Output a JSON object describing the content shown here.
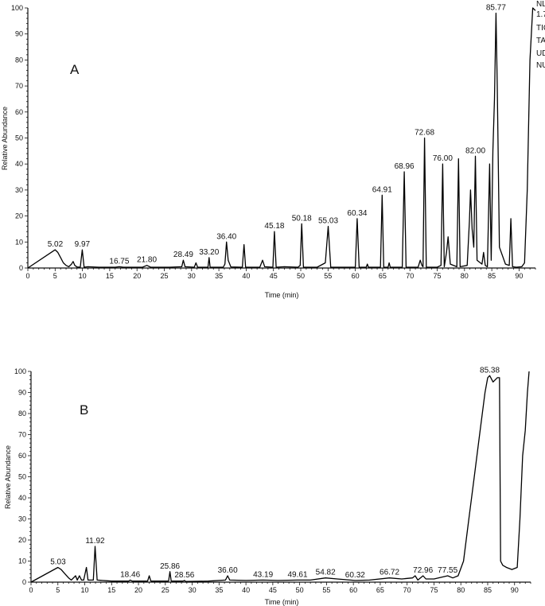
{
  "chart_data": [
    {
      "type": "line",
      "panel_label": "A",
      "xlabel": "Time (min)",
      "ylabel": "Relative Abundance",
      "xlim": [
        0,
        93
      ],
      "ylim": [
        0,
        100
      ],
      "xticks": [
        "0",
        "5",
        "10",
        "15",
        "20",
        "25",
        "30",
        "35",
        "40",
        "45",
        "50",
        "55",
        "60",
        "65",
        "70",
        "75",
        "80",
        "85",
        "90"
      ],
      "yticks": [
        "0",
        "10",
        "20",
        "30",
        "40",
        "50",
        "60",
        "70",
        "80",
        "90",
        "100"
      ],
      "side_text": [
        "NL",
        "1.7",
        "TIC",
        "TA",
        "UD",
        "NU"
      ],
      "peak_labels": [
        {
          "text": "5.02",
          "x": 5.02,
          "y": 7
        },
        {
          "text": "9.97",
          "x": 9.97,
          "y": 7
        },
        {
          "text": "16.75",
          "x": 16.75,
          "y": 0.5
        },
        {
          "text": "21.80",
          "x": 21.8,
          "y": 1
        },
        {
          "text": "28.49",
          "x": 28.49,
          "y": 3
        },
        {
          "text": "33.20",
          "x": 33.2,
          "y": 4
        },
        {
          "text": "36.40",
          "x": 36.4,
          "y": 10
        },
        {
          "text": "45.18",
          "x": 45.18,
          "y": 14
        },
        {
          "text": "50.18",
          "x": 50.18,
          "y": 17
        },
        {
          "text": "55.03",
          "x": 55.03,
          "y": 16
        },
        {
          "text": "60.34",
          "x": 60.34,
          "y": 19
        },
        {
          "text": "64.91",
          "x": 64.91,
          "y": 28
        },
        {
          "text": "68.96",
          "x": 68.96,
          "y": 37
        },
        {
          "text": "72.68",
          "x": 72.68,
          "y": 50
        },
        {
          "text": "76.00",
          "x": 76.0,
          "y": 40
        },
        {
          "text": "82.00",
          "x": 82.0,
          "y": 43
        },
        {
          "text": "85.77",
          "x": 85.77,
          "y": 98
        }
      ],
      "x": [
        0,
        5.0,
        5.5,
        6.0,
        6.5,
        7.0,
        7.5,
        8.0,
        8.3,
        8.6,
        9.0,
        9.6,
        9.97,
        10.3,
        11,
        13,
        16,
        16.75,
        17.5,
        21,
        21.8,
        22.5,
        26,
        28.2,
        28.49,
        28.8,
        30.5,
        30.8,
        31.1,
        33.0,
        33.2,
        33.4,
        35.8,
        36.1,
        36.4,
        36.7,
        37.2,
        39.3,
        39.6,
        39.9,
        42.5,
        43.0,
        43.4,
        44.9,
        45.18,
        45.5,
        47,
        49.5,
        49.9,
        50.18,
        50.5,
        53,
        54.5,
        55.03,
        55.5,
        58,
        60.0,
        60.34,
        60.7,
        62.0,
        62.2,
        62.4,
        64.6,
        64.91,
        65.2,
        66.0,
        66.2,
        66.4,
        68.6,
        68.96,
        69.3,
        71.5,
        71.9,
        72.2,
        72.4,
        72.68,
        73.0,
        75.0,
        75.7,
        76.0,
        76.3,
        76.7,
        77.0,
        77.4,
        78.6,
        78.9,
        79.2,
        80.5,
        80.9,
        81.1,
        81.4,
        81.7,
        82.0,
        82.3,
        83.2,
        83.5,
        83.8,
        84.2,
        84.6,
        84.9,
        85.2,
        85.5,
        85.77,
        86.0,
        86.4,
        87.5,
        88.2,
        88.5,
        88.8,
        89.5,
        90.5,
        91.0,
        91.5,
        92.0,
        92.5,
        93.0
      ],
      "y": [
        0,
        7,
        6,
        4,
        2,
        1,
        0.5,
        1.5,
        2.5,
        1,
        0.4,
        0.3,
        7,
        0.3,
        0.5,
        0.3,
        0.3,
        0.5,
        0.3,
        0.3,
        1,
        0.3,
        0.3,
        0.5,
        3,
        0.5,
        0.3,
        2,
        0.3,
        0.3,
        4,
        0.3,
        0.3,
        1.5,
        10,
        3,
        0.4,
        0.3,
        9,
        0.3,
        0.3,
        3,
        0.5,
        0.3,
        14,
        0.3,
        0.5,
        0.3,
        1,
        17,
        0.3,
        0.3,
        2,
        16,
        0.3,
        0.3,
        0.3,
        19,
        0.3,
        0.3,
        1.5,
        0.3,
        0.3,
        28,
        0.3,
        0.3,
        2,
        0.3,
        0.3,
        37,
        0.3,
        0.3,
        3,
        1,
        0.5,
        50,
        0.3,
        0.3,
        1,
        40,
        0.5,
        6,
        12,
        1.5,
        0.5,
        42,
        0.5,
        1,
        18,
        30,
        15,
        8,
        43,
        3,
        1.5,
        6,
        1,
        0.5,
        40,
        3,
        45,
        65,
        98,
        70,
        8,
        1.5,
        1,
        19,
        0.5,
        0.3,
        0.5,
        2,
        30,
        80,
        100,
        99
      ]
    },
    {
      "type": "line",
      "panel_label": "B",
      "xlabel": "Time (min)",
      "ylabel": "Relative Abundance",
      "xlim": [
        0,
        93
      ],
      "ylim": [
        0,
        100
      ],
      "xticks": [
        "0",
        "5",
        "10",
        "15",
        "20",
        "25",
        "30",
        "35",
        "40",
        "45",
        "50",
        "55",
        "60",
        "65",
        "70",
        "75",
        "80",
        "85",
        "90"
      ],
      "yticks": [
        "0",
        "10",
        "20",
        "30",
        "40",
        "50",
        "60",
        "70",
        "80",
        "90",
        "100"
      ],
      "peak_labels": [
        {
          "text": "5.03",
          "x": 5.03,
          "y": 7
        },
        {
          "text": "11.92",
          "x": 11.92,
          "y": 17
        },
        {
          "text": "18.46",
          "x": 18.46,
          "y": 1
        },
        {
          "text": "25.86",
          "x": 25.86,
          "y": 5
        },
        {
          "text": "28.56",
          "x": 28.56,
          "y": 0.8
        },
        {
          "text": "36.60",
          "x": 36.6,
          "y": 3
        },
        {
          "text": "43.19",
          "x": 43.19,
          "y": 1
        },
        {
          "text": "49.61",
          "x": 49.61,
          "y": 1
        },
        {
          "text": "54.82",
          "x": 54.82,
          "y": 2
        },
        {
          "text": "60.32",
          "x": 60.32,
          "y": 0.8
        },
        {
          "text": "66.72",
          "x": 66.72,
          "y": 2
        },
        {
          "text": "72.96",
          "x": 72.96,
          "y": 3
        },
        {
          "text": "77.55",
          "x": 77.55,
          "y": 3
        },
        {
          "text": "85.38",
          "x": 85.38,
          "y": 98
        }
      ],
      "x": [
        0,
        5.0,
        5.6,
        6.3,
        7.0,
        7.5,
        8.3,
        8.6,
        9.0,
        9.4,
        9.8,
        10.3,
        10.6,
        11.0,
        11.6,
        11.92,
        12.3,
        15,
        18.2,
        18.46,
        18.8,
        21.7,
        22.0,
        22.3,
        25.6,
        25.86,
        26.1,
        28.3,
        28.56,
        28.8,
        33,
        36.2,
        36.6,
        37.0,
        40,
        43.19,
        46,
        49.61,
        52,
        54.82,
        57,
        60.32,
        63,
        66.72,
        69,
        71.0,
        71.5,
        72.0,
        72.96,
        73.5,
        75,
        77.55,
        78.5,
        79.5,
        80.5,
        81.5,
        82.5,
        83.5,
        84.5,
        85.0,
        85.38,
        86.0,
        86.8,
        87.2,
        87.4,
        87.8,
        88.5,
        89.5,
        90.5,
        91.0,
        91.5,
        92.0,
        92.4,
        92.7
      ],
      "y": [
        0,
        7,
        6,
        4,
        2,
        1,
        3,
        1,
        3,
        1,
        1,
        7,
        1,
        1,
        1,
        17,
        1,
        0.5,
        0.5,
        1,
        0.5,
        0.5,
        3,
        0.5,
        0.5,
        5,
        0.5,
        0.5,
        0.8,
        0.3,
        0.5,
        1,
        3,
        1,
        0.8,
        1,
        0.8,
        1,
        1,
        2,
        1.5,
        0.8,
        1,
        2,
        1.5,
        2,
        3,
        1,
        3,
        1.5,
        1.5,
        3,
        2,
        3,
        10,
        30,
        50,
        70,
        90,
        97,
        98,
        95,
        97,
        97,
        10,
        8,
        7,
        6,
        7,
        30,
        60,
        72,
        90,
        100
      ]
    }
  ]
}
